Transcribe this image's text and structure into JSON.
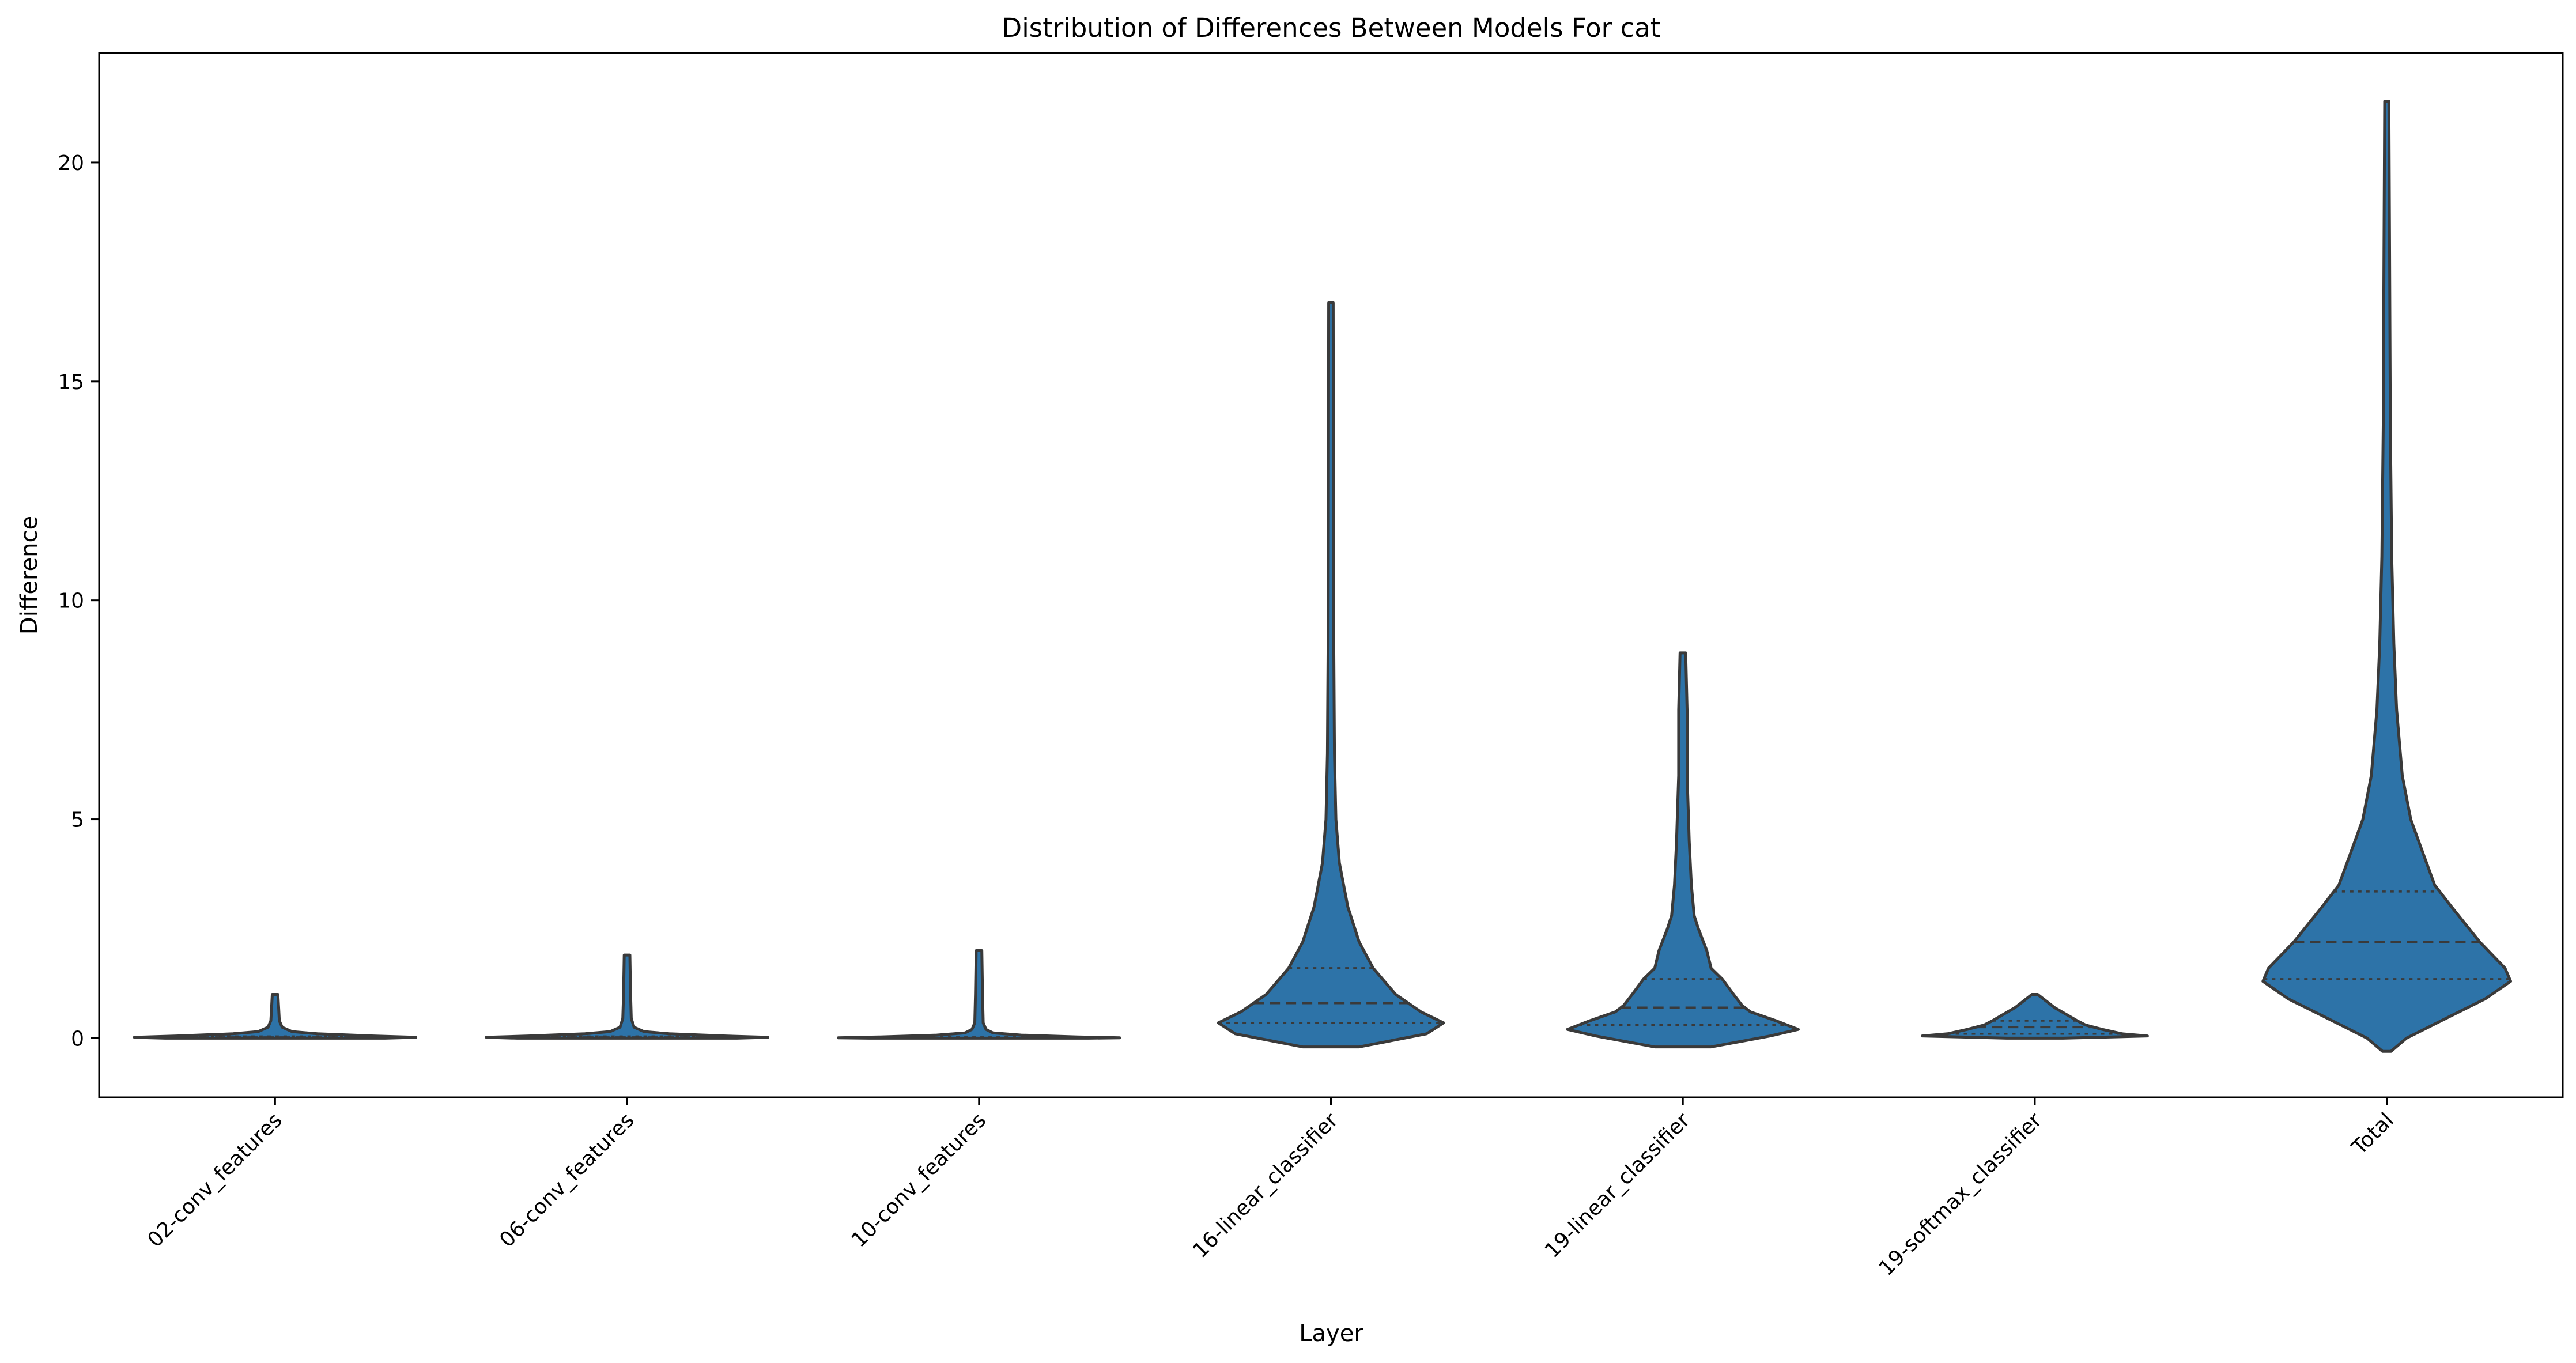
{
  "chart_data": {
    "type": "violin",
    "title": "Distribution of Differences Between Models For cat",
    "xlabel": "Layer",
    "ylabel": "Difference",
    "ylim": [
      -1.35,
      22.5
    ],
    "yticks": [
      0,
      5,
      10,
      15,
      20
    ],
    "grid": false,
    "fill_color": "#2d73a8",
    "categories": [
      "02-conv_features",
      "06-conv_features",
      "10-conv_features",
      "16-linear_classifier",
      "19-linear_classifier",
      "19-softmax_classifier",
      "Total"
    ],
    "series": [
      {
        "min": 0.0,
        "q1": 0.01,
        "median": 0.02,
        "q3": 0.04,
        "max": 1.0,
        "profile": [
          [
            0.0,
            0.78
          ],
          [
            0.02,
            1.0
          ],
          [
            0.05,
            0.7
          ],
          [
            0.1,
            0.3
          ],
          [
            0.15,
            0.12
          ],
          [
            0.25,
            0.05
          ],
          [
            0.4,
            0.03
          ],
          [
            0.7,
            0.025
          ],
          [
            1.0,
            0.02
          ]
        ]
      },
      {
        "min": 0.0,
        "q1": 0.01,
        "median": 0.02,
        "q3": 0.04,
        "max": 1.9,
        "profile": [
          [
            0.0,
            0.78
          ],
          [
            0.02,
            1.0
          ],
          [
            0.05,
            0.7
          ],
          [
            0.1,
            0.3
          ],
          [
            0.15,
            0.12
          ],
          [
            0.25,
            0.05
          ],
          [
            0.45,
            0.03
          ],
          [
            1.0,
            0.025
          ],
          [
            1.9,
            0.02
          ]
        ]
      },
      {
        "min": 0.0,
        "q1": 0.005,
        "median": 0.01,
        "q3": 0.02,
        "max": 2.0,
        "profile": [
          [
            0.0,
            0.78
          ],
          [
            0.01,
            1.0
          ],
          [
            0.03,
            0.7
          ],
          [
            0.07,
            0.3
          ],
          [
            0.12,
            0.1
          ],
          [
            0.2,
            0.05
          ],
          [
            0.35,
            0.03
          ],
          [
            1.0,
            0.025
          ],
          [
            2.0,
            0.02
          ]
        ]
      },
      {
        "min": -0.2,
        "q1": 0.35,
        "median": 0.8,
        "q3": 1.6,
        "max": 16.8,
        "profile": [
          [
            -0.2,
            0.2
          ],
          [
            0.1,
            0.68
          ],
          [
            0.35,
            0.8
          ],
          [
            0.6,
            0.64
          ],
          [
            1.0,
            0.46
          ],
          [
            1.6,
            0.3
          ],
          [
            2.2,
            0.2
          ],
          [
            3.0,
            0.12
          ],
          [
            4.0,
            0.06
          ],
          [
            5.0,
            0.035
          ],
          [
            6.5,
            0.025
          ],
          [
            9.0,
            0.02
          ],
          [
            12.0,
            0.018
          ],
          [
            16.8,
            0.016
          ]
        ]
      },
      {
        "min": -0.2,
        "q1": 0.3,
        "median": 0.7,
        "q3": 1.35,
        "max": 8.8,
        "profile": [
          [
            -0.2,
            0.2
          ],
          [
            0.05,
            0.62
          ],
          [
            0.2,
            0.82
          ],
          [
            0.4,
            0.66
          ],
          [
            0.6,
            0.48
          ],
          [
            0.75,
            0.42
          ],
          [
            1.0,
            0.36
          ],
          [
            1.35,
            0.28
          ],
          [
            1.6,
            0.2
          ],
          [
            2.0,
            0.17
          ],
          [
            2.5,
            0.11
          ],
          [
            2.8,
            0.08
          ],
          [
            3.5,
            0.06
          ],
          [
            4.5,
            0.045
          ],
          [
            5.0,
            0.04
          ],
          [
            6.0,
            0.03
          ],
          [
            7.5,
            0.03
          ],
          [
            8.8,
            0.02
          ]
        ]
      },
      {
        "min": 0.0,
        "q1": 0.1,
        "median": 0.25,
        "q3": 0.4,
        "max": 1.0,
        "profile": [
          [
            0.0,
            0.2
          ],
          [
            0.05,
            0.8
          ],
          [
            0.1,
            0.62
          ],
          [
            0.2,
            0.48
          ],
          [
            0.3,
            0.36
          ],
          [
            0.4,
            0.3
          ],
          [
            0.55,
            0.22
          ],
          [
            0.7,
            0.14
          ],
          [
            0.85,
            0.08
          ],
          [
            1.0,
            0.02
          ]
        ]
      },
      {
        "min": -0.3,
        "q1": 1.35,
        "median": 2.2,
        "q3": 3.35,
        "max": 21.4,
        "profile": [
          [
            -0.3,
            0.03
          ],
          [
            0.0,
            0.14
          ],
          [
            0.5,
            0.45
          ],
          [
            0.9,
            0.7
          ],
          [
            1.3,
            0.88
          ],
          [
            1.6,
            0.84
          ],
          [
            2.2,
            0.66
          ],
          [
            3.0,
            0.46
          ],
          [
            3.5,
            0.34
          ],
          [
            4.2,
            0.26
          ],
          [
            5.0,
            0.17
          ],
          [
            6.0,
            0.11
          ],
          [
            7.5,
            0.07
          ],
          [
            9.0,
            0.05
          ],
          [
            11.0,
            0.035
          ],
          [
            14.0,
            0.025
          ],
          [
            18.0,
            0.02
          ],
          [
            21.4,
            0.015
          ]
        ]
      }
    ]
  }
}
